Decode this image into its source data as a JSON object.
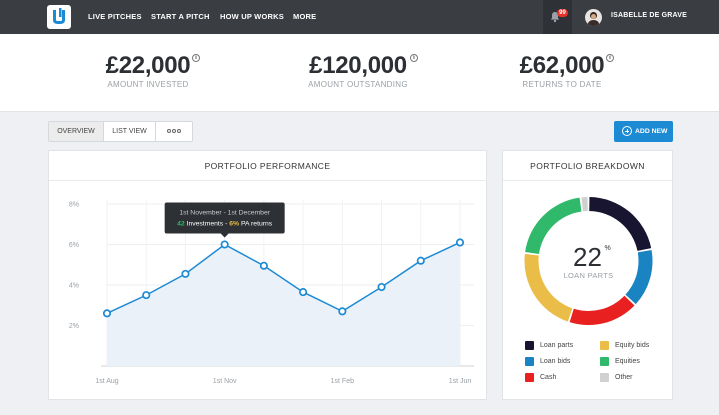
{
  "nav": {
    "items": [
      "LIVE PITCHES",
      "START A PITCH",
      "HOW UP WORKS",
      "MORE"
    ],
    "notifications_count": "99",
    "username": "ISABELLE DE GRAVE"
  },
  "stats": [
    {
      "value": "£22,000",
      "label": "AMOUNT INVESTED"
    },
    {
      "value": "£120,000",
      "label": "AMOUNT OUTSTANDING"
    },
    {
      "value": "£62,000",
      "label": "RETURNS TO DATE"
    }
  ],
  "info_glyph": "i",
  "tabs": {
    "overview": "OVERVIEW",
    "list_view": "LIST VIEW",
    "active": "OVERVIEW"
  },
  "add_button": "ADD NEW",
  "performance": {
    "title": "PORTFOLIO PERFORMANCE",
    "tooltip": {
      "range": "1st November - 1st December",
      "investments_count": "42",
      "investments_label": "Investments -",
      "returns_value": "6%",
      "returns_label": "PA returns"
    }
  },
  "breakdown": {
    "title": "PORTFOLIO BREAKDOWN",
    "center_value": "22",
    "center_unit": "%",
    "center_label": "LOAN PARTS"
  },
  "chart_data": [
    {
      "type": "line",
      "title": "PORTFOLIO PERFORMANCE",
      "x_ticks": [
        "1st Aug",
        "1st Nov",
        "1st Feb",
        "1st Jun"
      ],
      "y_ticks": [
        "2%",
        "4%",
        "6%",
        "8%"
      ],
      "ylim": [
        0,
        8
      ],
      "grid": true,
      "series": [
        {
          "values": [
            2.6,
            3.5,
            4.55,
            6.0,
            4.95,
            3.65,
            2.7,
            3.9,
            5.2,
            6.1
          ]
        }
      ],
      "colors": {
        "line": "#1d8ad4",
        "fill": "#eaf1f9"
      }
    },
    {
      "type": "pie",
      "title": "PORTFOLIO BREAKDOWN",
      "slices": [
        {
          "name": "Loan parts",
          "value": 22,
          "color": "#171530"
        },
        {
          "name": "Loan bids",
          "value": 15,
          "color": "#1a84c2"
        },
        {
          "name": "Cash",
          "value": 18,
          "color": "#e8201f"
        },
        {
          "name": "Equity bids",
          "value": 22,
          "color": "#e9bd47"
        },
        {
          "name": "Equities",
          "value": 21,
          "color": "#30b96a"
        },
        {
          "name": "Other",
          "value": 2,
          "color": "#d0d0d0"
        }
      ]
    }
  ]
}
